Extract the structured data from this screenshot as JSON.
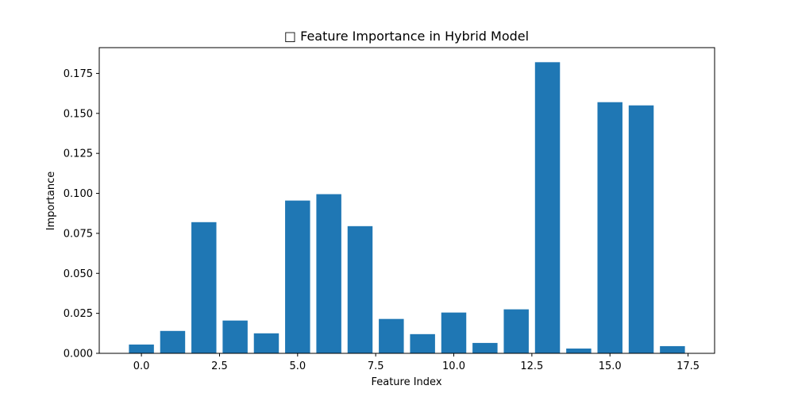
{
  "chart_data": {
    "type": "bar",
    "title": "□ Feature Importance in Hybrid Model",
    "xlabel": "Feature Index",
    "ylabel": "Importance",
    "x": [
      0,
      1,
      2,
      3,
      4,
      5,
      6,
      7,
      8,
      9,
      10,
      11,
      12,
      13,
      14,
      15,
      16,
      17
    ],
    "values": [
      0.0055,
      0.014,
      0.082,
      0.0205,
      0.0125,
      0.0955,
      0.0995,
      0.0795,
      0.0215,
      0.012,
      0.0255,
      0.0065,
      0.0275,
      0.182,
      0.003,
      0.157,
      0.155,
      0.0045
    ],
    "xlim": [
      -1.35,
      18.35
    ],
    "ylim": [
      0,
      0.1911
    ],
    "xticks": [
      "0.0",
      "2.5",
      "5.0",
      "7.5",
      "10.0",
      "12.5",
      "15.0",
      "17.5"
    ],
    "yticks": [
      "0.000",
      "0.025",
      "0.050",
      "0.075",
      "0.100",
      "0.125",
      "0.150",
      "0.175"
    ],
    "bar_color": "#1f77b4",
    "grid": false,
    "legend": "none"
  }
}
